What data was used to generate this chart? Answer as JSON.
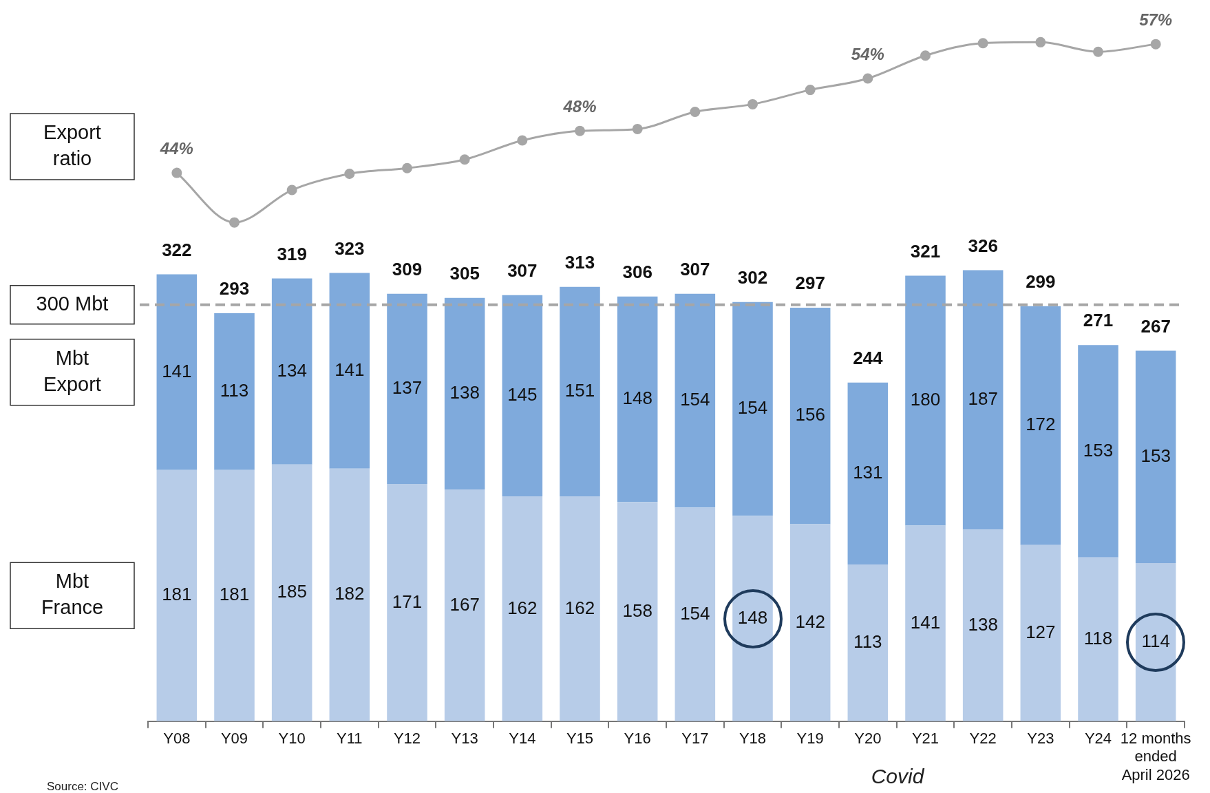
{
  "chart_data": [
    {
      "type": "line",
      "categories": [
        null,
        null,
        null,
        null,
        null,
        null,
        null,
        null,
        null,
        null,
        null,
        null,
        null,
        null,
        null,
        null,
        null,
        null
      ],
      "tick_labels": false,
      "legend": false,
      "series": [
        {
          "name": "Export ratio",
          "color": "#a6a6a6",
          "marker": "circle",
          "line_style": "solid",
          "values": [
            43.8,
            38.6,
            42.0,
            43.7,
            44.3,
            45.2,
            47.2,
            48.2,
            48.4,
            50.2,
            51.0,
            52.5,
            53.7,
            56.1,
            57.4,
            57.5,
            56.5,
            57.3
          ],
          "value_labels": [
            "44%",
            null,
            null,
            null,
            null,
            null,
            null,
            "48%",
            null,
            null,
            null,
            null,
            "54%",
            null,
            null,
            null,
            null,
            "57%"
          ]
        }
      ]
    },
    {
      "type": "bar",
      "stacked": true,
      "categories": [
        "Y08",
        "Y09",
        "Y10",
        "Y11",
        "Y12",
        "Y13",
        "Y14",
        "Y15",
        "Y16",
        "Y17",
        "Y18",
        "Y19",
        "Y20",
        "Y21",
        "Y22",
        "Y23",
        "Y24",
        "12 months ended April 2026"
      ],
      "series": [
        {
          "name": "Mbt France",
          "color": "#b7cce8",
          "values": [
            181,
            181,
            185,
            182,
            171,
            167,
            162,
            162,
            158,
            154,
            148,
            142,
            113,
            141,
            138,
            127,
            118,
            114
          ]
        },
        {
          "name": "Mbt Export",
          "color": "#7faadc",
          "values": [
            141,
            113,
            134,
            141,
            137,
            138,
            145,
            151,
            148,
            154,
            154,
            156,
            131,
            180,
            187,
            172,
            153,
            153
          ]
        }
      ],
      "data_labels": true,
      "totals": [
        "322",
        "293",
        "319",
        "323",
        "309",
        "305",
        "307",
        "313",
        "306",
        "307",
        "302",
        "297",
        "244",
        "321",
        "326",
        "299",
        "271",
        "267"
      ],
      "ref_lines": [
        {
          "axis": "y",
          "value": 300,
          "label": "300 Mbt",
          "color": "#a6a6a6",
          "line_style": "dashed"
        }
      ],
      "annotations": [
        "Covid",
        "Source: CIVC"
      ],
      "tick_labels": "x",
      "grid": false,
      "legend": false
    }
  ]
}
